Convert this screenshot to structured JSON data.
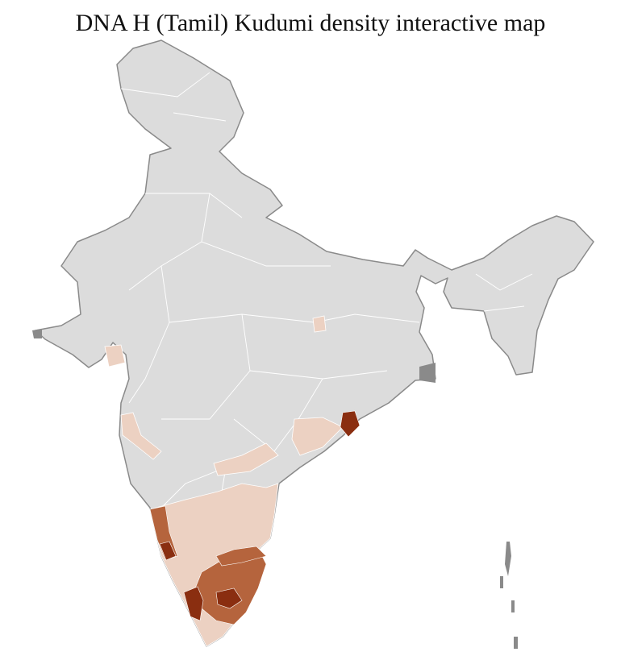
{
  "title": "DNA H (Tamil) Kudumi density interactive map"
}
